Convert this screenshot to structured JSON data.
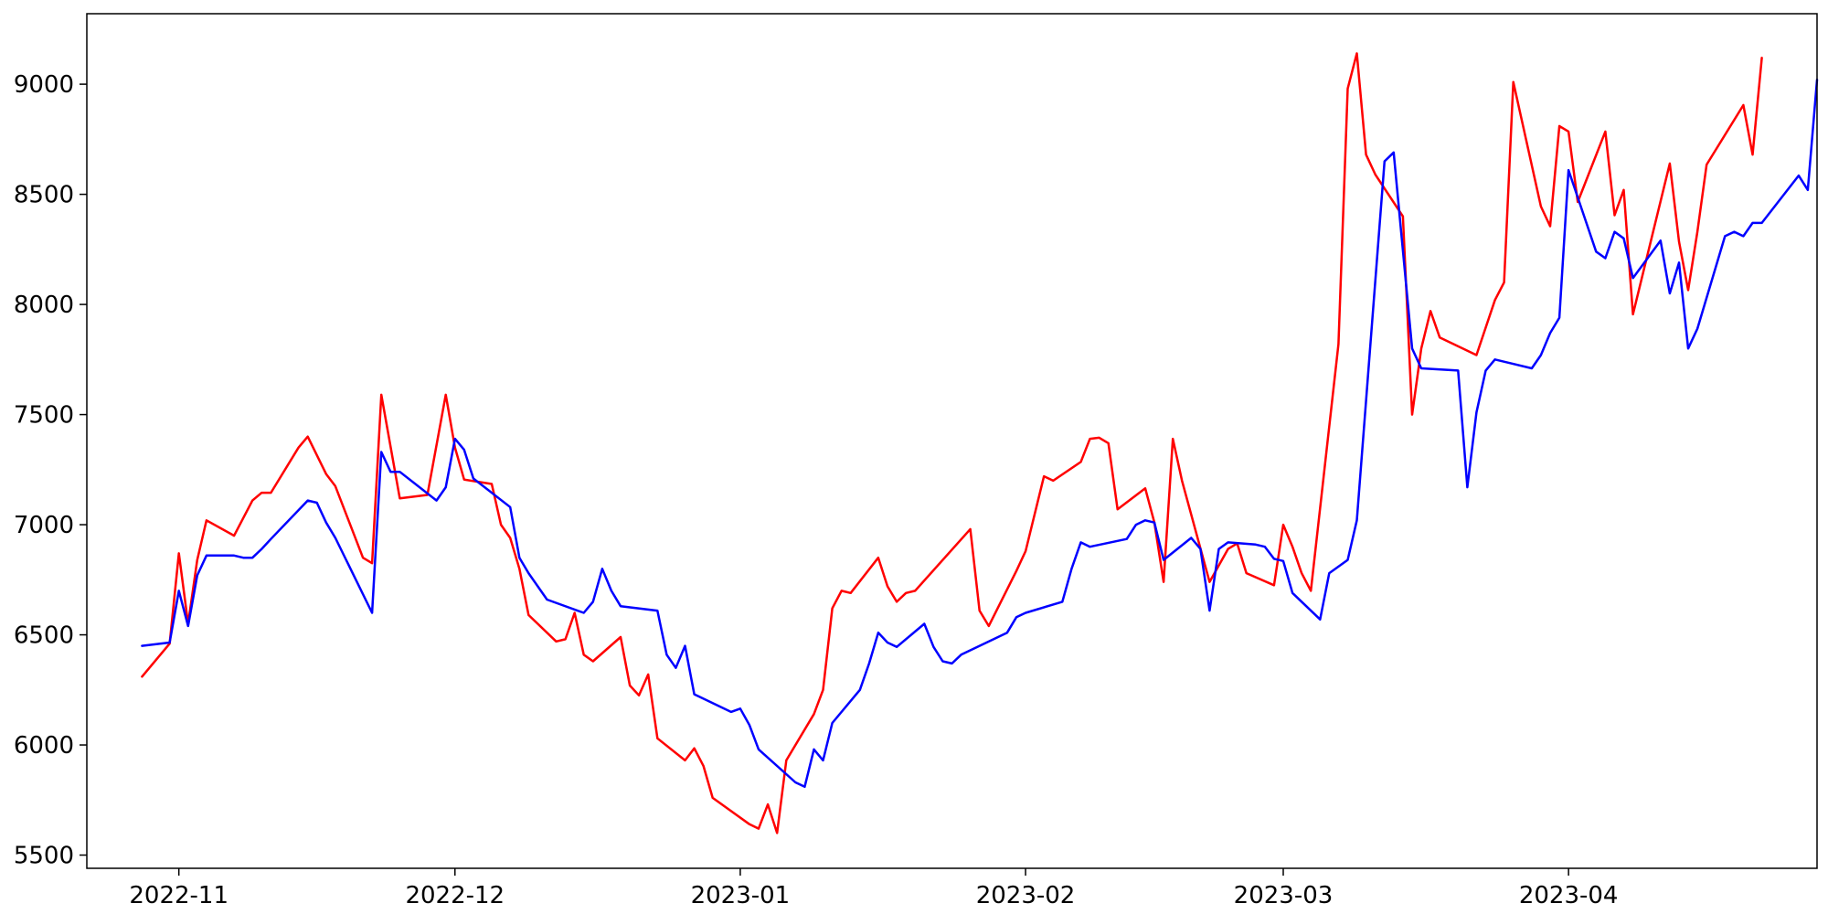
{
  "chart_data": {
    "type": "line",
    "title": "",
    "xlabel": "",
    "ylabel": "",
    "x_tick_labels": [
      {
        "date": "2022-11-01",
        "label": "2022-11"
      },
      {
        "date": "2022-12-01",
        "label": "2022-12"
      },
      {
        "date": "2023-01-01",
        "label": "2023-01"
      },
      {
        "date": "2023-02-01",
        "label": "2023-02"
      },
      {
        "date": "2023-03-01",
        "label": "2023-03"
      },
      {
        "date": "2023-04-01",
        "label": "2023-04"
      }
    ],
    "y_ticks": [
      5500,
      6000,
      6500,
      7000,
      7500,
      8000,
      8500,
      9000
    ],
    "xlim": [
      "2022-10-22",
      "2023-04-28"
    ],
    "ylim": [
      5440,
      9320
    ],
    "grid": false,
    "legend": "none",
    "series": [
      {
        "color": "#ff0000",
        "points": [
          [
            "2022-10-28",
            6310
          ],
          [
            "2022-10-31",
            6460
          ],
          [
            "2022-11-01",
            6870
          ],
          [
            "2022-11-02",
            6550
          ],
          [
            "2022-11-03",
            6840
          ],
          [
            "2022-11-04",
            7020
          ],
          [
            "2022-11-07",
            6950
          ],
          [
            "2022-11-09",
            7110
          ],
          [
            "2022-11-10",
            7145
          ],
          [
            "2022-11-11",
            7145
          ],
          [
            "2022-11-14",
            7350
          ],
          [
            "2022-11-15",
            7400
          ],
          [
            "2022-11-17",
            7230
          ],
          [
            "2022-11-18",
            7175
          ],
          [
            "2022-11-21",
            6850
          ],
          [
            "2022-11-22",
            6825
          ],
          [
            "2022-11-23",
            7590
          ],
          [
            "2022-11-25",
            7120
          ],
          [
            "2022-11-28",
            7135
          ],
          [
            "2022-11-30",
            7590
          ],
          [
            "2022-12-01",
            7350
          ],
          [
            "2022-12-02",
            7205
          ],
          [
            "2022-12-05",
            7185
          ],
          [
            "2022-12-06",
            7000
          ],
          [
            "2022-12-07",
            6940
          ],
          [
            "2022-12-08",
            6800
          ],
          [
            "2022-12-09",
            6590
          ],
          [
            "2022-12-12",
            6470
          ],
          [
            "2022-12-13",
            6480
          ],
          [
            "2022-12-14",
            6600
          ],
          [
            "2022-12-15",
            6410
          ],
          [
            "2022-12-16",
            6380
          ],
          [
            "2022-12-19",
            6490
          ],
          [
            "2022-12-20",
            6270
          ],
          [
            "2022-12-21",
            6225
          ],
          [
            "2022-12-22",
            6320
          ],
          [
            "2022-12-23",
            6030
          ],
          [
            "2022-12-26",
            5930
          ],
          [
            "2022-12-27",
            5985
          ],
          [
            "2022-12-28",
            5905
          ],
          [
            "2022-12-29",
            5760
          ],
          [
            "2023-01-02",
            5640
          ],
          [
            "2023-01-03",
            5620
          ],
          [
            "2023-01-04",
            5730
          ],
          [
            "2023-01-05",
            5600
          ],
          [
            "2023-01-06",
            5930
          ],
          [
            "2023-01-09",
            6140
          ],
          [
            "2023-01-10",
            6250
          ],
          [
            "2023-01-11",
            6620
          ],
          [
            "2023-01-12",
            6700
          ],
          [
            "2023-01-13",
            6690
          ],
          [
            "2023-01-16",
            6850
          ],
          [
            "2023-01-17",
            6720
          ],
          [
            "2023-01-18",
            6650
          ],
          [
            "2023-01-19",
            6690
          ],
          [
            "2023-01-20",
            6700
          ],
          [
            "2023-01-26",
            6980
          ],
          [
            "2023-01-27",
            6610
          ],
          [
            "2023-01-28",
            6540
          ],
          [
            "2023-01-31",
            6790
          ],
          [
            "2023-02-01",
            6880
          ],
          [
            "2023-02-03",
            7220
          ],
          [
            "2023-02-04",
            7200
          ],
          [
            "2023-02-07",
            7285
          ],
          [
            "2023-02-08",
            7390
          ],
          [
            "2023-02-09",
            7395
          ],
          [
            "2023-02-10",
            7370
          ],
          [
            "2023-02-11",
            7070
          ],
          [
            "2023-02-14",
            7165
          ],
          [
            "2023-02-15",
            7010
          ],
          [
            "2023-02-16",
            6740
          ],
          [
            "2023-02-17",
            7390
          ],
          [
            "2023-02-18",
            7200
          ],
          [
            "2023-02-21",
            6740
          ],
          [
            "2023-02-23",
            6890
          ],
          [
            "2023-02-24",
            6915
          ],
          [
            "2023-02-25",
            6780
          ],
          [
            "2023-02-28",
            6725
          ],
          [
            "2023-03-01",
            7000
          ],
          [
            "2023-03-02",
            6900
          ],
          [
            "2023-03-03",
            6780
          ],
          [
            "2023-03-04",
            6700
          ],
          [
            "2023-03-07",
            7820
          ],
          [
            "2023-03-08",
            8980
          ],
          [
            "2023-03-09",
            9140
          ],
          [
            "2023-03-10",
            8680
          ],
          [
            "2023-03-11",
            8590
          ],
          [
            "2023-03-14",
            8400
          ],
          [
            "2023-03-15",
            7500
          ],
          [
            "2023-03-16",
            7800
          ],
          [
            "2023-03-17",
            7970
          ],
          [
            "2023-03-18",
            7850
          ],
          [
            "2023-03-22",
            7770
          ],
          [
            "2023-03-24",
            8020
          ],
          [
            "2023-03-25",
            8100
          ],
          [
            "2023-03-26",
            9010
          ],
          [
            "2023-03-29",
            8445
          ],
          [
            "2023-03-30",
            8355
          ],
          [
            "2023-03-31",
            8810
          ],
          [
            "2023-04-01",
            8785
          ],
          [
            "2023-04-02",
            8465
          ],
          [
            "2023-04-05",
            8785
          ],
          [
            "2023-04-06",
            8405
          ],
          [
            "2023-04-07",
            8520
          ],
          [
            "2023-04-08",
            7955
          ],
          [
            "2023-04-12",
            8640
          ],
          [
            "2023-04-13",
            8285
          ],
          [
            "2023-04-14",
            8065
          ],
          [
            "2023-04-15",
            8330
          ],
          [
            "2023-04-16",
            8635
          ],
          [
            "2023-04-20",
            8905
          ],
          [
            "2023-04-21",
            8680
          ],
          [
            "2023-04-22",
            9120
          ]
        ]
      },
      {
        "color": "#0000ff",
        "points": [
          [
            "2022-10-28",
            6450
          ],
          [
            "2022-10-31",
            6465
          ],
          [
            "2022-11-01",
            6700
          ],
          [
            "2022-11-02",
            6540
          ],
          [
            "2022-11-03",
            6770
          ],
          [
            "2022-11-04",
            6860
          ],
          [
            "2022-11-07",
            6860
          ],
          [
            "2022-11-08",
            6850
          ],
          [
            "2022-11-09",
            6850
          ],
          [
            "2022-11-10",
            6890
          ],
          [
            "2022-11-11",
            6935
          ],
          [
            "2022-11-15",
            7110
          ],
          [
            "2022-11-16",
            7100
          ],
          [
            "2022-11-17",
            7010
          ],
          [
            "2022-11-18",
            6940
          ],
          [
            "2022-11-22",
            6600
          ],
          [
            "2022-11-23",
            7330
          ],
          [
            "2022-11-24",
            7240
          ],
          [
            "2022-11-25",
            7240
          ],
          [
            "2022-11-29",
            7110
          ],
          [
            "2022-11-30",
            7170
          ],
          [
            "2022-12-01",
            7390
          ],
          [
            "2022-12-02",
            7340
          ],
          [
            "2022-12-03",
            7210
          ],
          [
            "2022-12-07",
            7080
          ],
          [
            "2022-12-08",
            6850
          ],
          [
            "2022-12-09",
            6780
          ],
          [
            "2022-12-11",
            6660
          ],
          [
            "2022-12-15",
            6600
          ],
          [
            "2022-12-16",
            6650
          ],
          [
            "2022-12-17",
            6800
          ],
          [
            "2022-12-18",
            6700
          ],
          [
            "2022-12-19",
            6630
          ],
          [
            "2022-12-23",
            6610
          ],
          [
            "2022-12-24",
            6410
          ],
          [
            "2022-12-25",
            6350
          ],
          [
            "2022-12-26",
            6450
          ],
          [
            "2022-12-27",
            6230
          ],
          [
            "2022-12-31",
            6150
          ],
          [
            "2023-01-01",
            6165
          ],
          [
            "2023-01-02",
            6090
          ],
          [
            "2023-01-03",
            5980
          ],
          [
            "2023-01-07",
            5830
          ],
          [
            "2023-01-08",
            5810
          ],
          [
            "2023-01-09",
            5980
          ],
          [
            "2023-01-10",
            5930
          ],
          [
            "2023-01-11",
            6100
          ],
          [
            "2023-01-14",
            6250
          ],
          [
            "2023-01-15",
            6370
          ],
          [
            "2023-01-16",
            6510
          ],
          [
            "2023-01-17",
            6465
          ],
          [
            "2023-01-18",
            6445
          ],
          [
            "2023-01-21",
            6550
          ],
          [
            "2023-01-22",
            6445
          ],
          [
            "2023-01-23",
            6380
          ],
          [
            "2023-01-24",
            6370
          ],
          [
            "2023-01-25",
            6410
          ],
          [
            "2023-01-30",
            6510
          ],
          [
            "2023-01-31",
            6580
          ],
          [
            "2023-02-01",
            6600
          ],
          [
            "2023-02-05",
            6650
          ],
          [
            "2023-02-06",
            6800
          ],
          [
            "2023-02-07",
            6920
          ],
          [
            "2023-02-08",
            6900
          ],
          [
            "2023-02-12",
            6935
          ],
          [
            "2023-02-13",
            7000
          ],
          [
            "2023-02-14",
            7020
          ],
          [
            "2023-02-15",
            7010
          ],
          [
            "2023-02-16",
            6840
          ],
          [
            "2023-02-19",
            6940
          ],
          [
            "2023-02-20",
            6890
          ],
          [
            "2023-02-21",
            6610
          ],
          [
            "2023-02-22",
            6890
          ],
          [
            "2023-02-23",
            6920
          ],
          [
            "2023-02-26",
            6910
          ],
          [
            "2023-02-27",
            6900
          ],
          [
            "2023-02-28",
            6845
          ],
          [
            "2023-03-01",
            6835
          ],
          [
            "2023-03-02",
            6690
          ],
          [
            "2023-03-05",
            6570
          ],
          [
            "2023-03-06",
            6780
          ],
          [
            "2023-03-08",
            6840
          ],
          [
            "2023-03-09",
            7020
          ],
          [
            "2023-03-12",
            8650
          ],
          [
            "2023-03-13",
            8690
          ],
          [
            "2023-03-15",
            7800
          ],
          [
            "2023-03-16",
            7710
          ],
          [
            "2023-03-20",
            7700
          ],
          [
            "2023-03-21",
            7170
          ],
          [
            "2023-03-22",
            7510
          ],
          [
            "2023-03-23",
            7700
          ],
          [
            "2023-03-24",
            7750
          ],
          [
            "2023-03-28",
            7710
          ],
          [
            "2023-03-29",
            7770
          ],
          [
            "2023-03-30",
            7870
          ],
          [
            "2023-03-31",
            7940
          ],
          [
            "2023-04-01",
            8610
          ],
          [
            "2023-04-04",
            8240
          ],
          [
            "2023-04-05",
            8210
          ],
          [
            "2023-04-06",
            8330
          ],
          [
            "2023-04-07",
            8300
          ],
          [
            "2023-04-08",
            8120
          ],
          [
            "2023-04-11",
            8290
          ],
          [
            "2023-04-12",
            8050
          ],
          [
            "2023-04-13",
            8190
          ],
          [
            "2023-04-14",
            7800
          ],
          [
            "2023-04-15",
            7890
          ],
          [
            "2023-04-18",
            8310
          ],
          [
            "2023-04-19",
            8330
          ],
          [
            "2023-04-20",
            8310
          ],
          [
            "2023-04-21",
            8370
          ],
          [
            "2023-04-22",
            8370
          ],
          [
            "2023-04-26",
            8585
          ],
          [
            "2023-04-27",
            8520
          ],
          [
            "2023-04-28",
            9020
          ]
        ]
      }
    ]
  }
}
